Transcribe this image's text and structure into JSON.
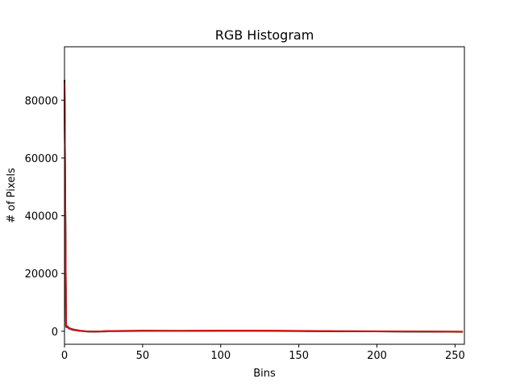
{
  "chart_data": {
    "type": "line",
    "title": "RGB Histogram",
    "xlabel": "Bins",
    "ylabel": "# of Pixels",
    "xlim": [
      0,
      256
    ],
    "ylim": [
      -4500,
      98500
    ],
    "xticks": [
      0,
      50,
      100,
      150,
      200,
      250
    ],
    "yticks": [
      0,
      20000,
      40000,
      60000,
      80000
    ],
    "xtick_labels": [
      "0",
      "50",
      "100",
      "150",
      "200",
      "250"
    ],
    "ytick_labels": [
      "0",
      "20000",
      "40000",
      "60000",
      "80000"
    ],
    "grid": false,
    "legend": "none",
    "series": [
      {
        "color": "#2222cc",
        "x": [
          0,
          1,
          2,
          3,
          5,
          8,
          10,
          15,
          20,
          30,
          50,
          75,
          100,
          125,
          150,
          175,
          200,
          225,
          255
        ],
        "y": [
          86000,
          1500,
          1300,
          900,
          500,
          250,
          100,
          -100,
          -150,
          0,
          100,
          150,
          150,
          150,
          50,
          -50,
          -50,
          -100,
          -200
        ]
      },
      {
        "color": "#22aa22",
        "x": [
          0,
          1,
          2,
          3,
          5,
          8,
          10,
          15,
          20,
          30,
          50,
          75,
          100,
          125,
          150,
          175,
          200,
          225,
          255
        ],
        "y": [
          86500,
          1800,
          1500,
          1000,
          600,
          300,
          150,
          -100,
          -150,
          50,
          150,
          150,
          200,
          200,
          100,
          0,
          -50,
          -100,
          -200
        ]
      },
      {
        "color": "#111111",
        "x": [
          0,
          1,
          2,
          3,
          5,
          8,
          10,
          15,
          20,
          30,
          50,
          75,
          100,
          125,
          150,
          175,
          200,
          225,
          255
        ],
        "y": [
          87000,
          2000,
          1600,
          1100,
          700,
          400,
          200,
          -50,
          -100,
          100,
          200,
          150,
          200,
          200,
          100,
          0,
          -50,
          -100,
          -150
        ]
      },
      {
        "color": "#dd1111",
        "x": [
          0,
          1,
          2,
          3,
          5,
          8,
          10,
          15,
          20,
          30,
          50,
          75,
          100,
          125,
          150,
          175,
          200,
          225,
          255
        ],
        "y": [
          86000,
          1700,
          1400,
          1000,
          600,
          300,
          150,
          -100,
          -100,
          100,
          150,
          150,
          200,
          200,
          150,
          50,
          0,
          -50,
          -150
        ]
      }
    ]
  }
}
